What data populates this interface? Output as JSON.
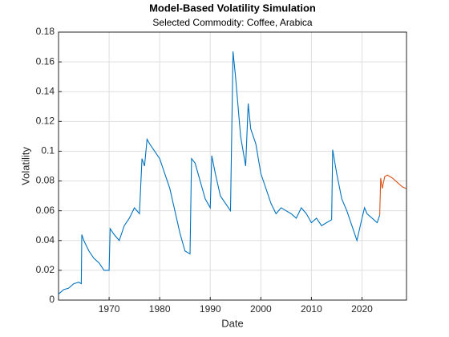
{
  "chart_data": {
    "type": "line",
    "title": "Model-Based Volatility Simulation",
    "subtitle": "Selected Commodity: Coffee, Arabica",
    "xlabel": "Date",
    "ylabel": "Volatility",
    "xlim": [
      1960,
      2028.8
    ],
    "ylim": [
      0,
      0.18
    ],
    "xticks": [
      1970,
      1980,
      1990,
      2000,
      2010,
      2020
    ],
    "yticks": [
      0,
      0.02,
      0.04,
      0.06,
      0.08,
      0.1,
      0.12,
      0.14,
      0.16,
      0.18
    ],
    "grid": true,
    "series": [
      {
        "color": "#0072bd",
        "x": [
          1960,
          1961,
          1962,
          1963,
          1964,
          1964.5,
          1964.6,
          1965,
          1966,
          1967,
          1968,
          1969,
          1970,
          1970.2,
          1971,
          1972,
          1973,
          1974,
          1975,
          1976,
          1976.5,
          1977,
          1977.5,
          1978,
          1979,
          1980,
          1981,
          1982,
          1983,
          1984,
          1985,
          1986,
          1986.3,
          1987,
          1988,
          1989,
          1990,
          1990.3,
          1991,
          1992,
          1993,
          1994,
          1994.5,
          1995,
          1996,
          1997,
          1997.5,
          1998,
          1999,
          2000,
          2001,
          2002,
          2003,
          2004,
          2005,
          2006,
          2007,
          2008,
          2009,
          2010,
          2011,
          2012,
          2013,
          2014,
          2014.2,
          2015,
          2016,
          2017,
          2018,
          2019,
          2020,
          2020.5,
          2021,
          2022,
          2023,
          2023.5
        ],
        "values": [
          0.004,
          0.007,
          0.008,
          0.011,
          0.012,
          0.011,
          0.044,
          0.04,
          0.033,
          0.028,
          0.025,
          0.02,
          0.02,
          0.048,
          0.044,
          0.04,
          0.05,
          0.055,
          0.062,
          0.058,
          0.095,
          0.09,
          0.108,
          0.105,
          0.1,
          0.095,
          0.085,
          0.075,
          0.06,
          0.045,
          0.033,
          0.031,
          0.095,
          0.092,
          0.08,
          0.068,
          0.062,
          0.097,
          0.085,
          0.07,
          0.065,
          0.06,
          0.167,
          0.15,
          0.11,
          0.09,
          0.132,
          0.115,
          0.105,
          0.085,
          0.075,
          0.065,
          0.058,
          0.062,
          0.06,
          0.058,
          0.055,
          0.062,
          0.058,
          0.052,
          0.055,
          0.05,
          0.052,
          0.054,
          0.101,
          0.085,
          0.068,
          0.06,
          0.05,
          0.04,
          0.055,
          0.062,
          0.058,
          0.055,
          0.052,
          0.057
        ]
      },
      {
        "color": "#d95319",
        "x": [
          2023.5,
          2023.7,
          2024,
          2024.5,
          2025,
          2026,
          2027,
          2028,
          2028.7
        ],
        "values": [
          0.057,
          0.082,
          0.075,
          0.083,
          0.084,
          0.082,
          0.079,
          0.076,
          0.075
        ]
      }
    ]
  }
}
